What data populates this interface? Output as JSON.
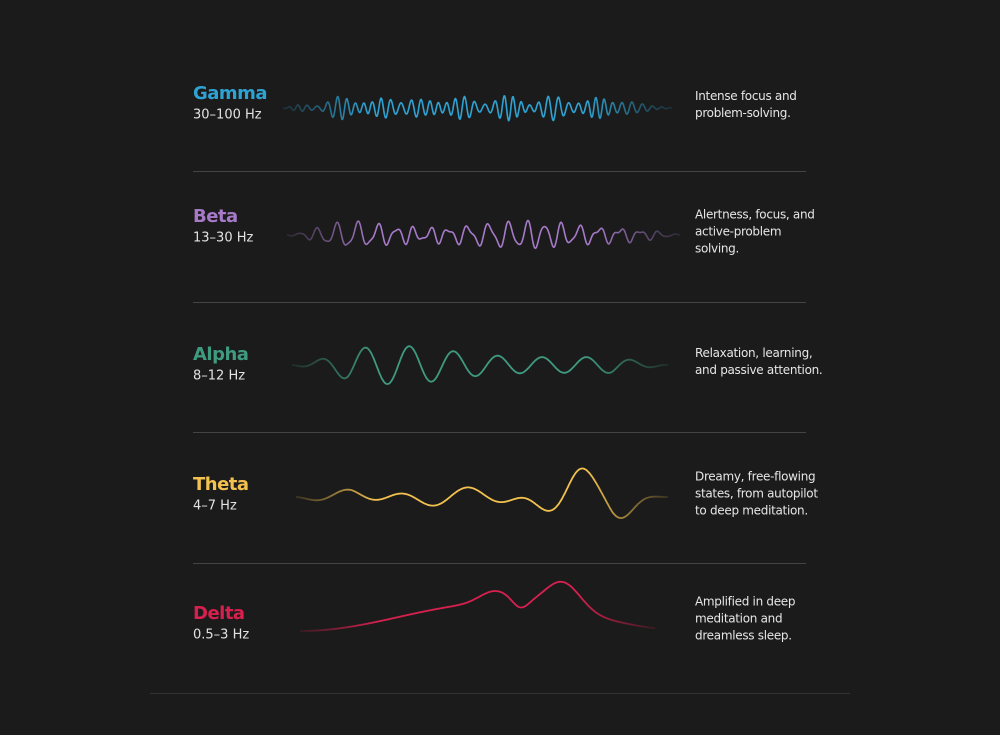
{
  "rows": [
    {
      "name": "Gamma",
      "range": "30–100 Hz",
      "color": "#2ea3d3",
      "description": [
        "Intense focus and",
        "problem-solving."
      ]
    },
    {
      "name": "Beta",
      "range": "13–30 Hz",
      "color": "#a67ac9",
      "description": [
        "Alertness, focus, and",
        "active-problem",
        "solving."
      ]
    },
    {
      "name": "Alpha",
      "range": "8–12 Hz",
      "color": "#3f9a80",
      "description": [
        "Relaxation, learning,",
        "and passive attention."
      ]
    },
    {
      "name": "Theta",
      "range": "4–7 Hz",
      "color": "#f2c14e",
      "description": [
        "Dreamy, free-flowing",
        "states, from autopilot",
        "to deep meditation."
      ]
    },
    {
      "name": "Delta",
      "range": "0.5–3 Hz",
      "color": "#d8204f",
      "description": [
        "Amplified in deep",
        "meditation and",
        "dreamless sleep."
      ]
    }
  ]
}
